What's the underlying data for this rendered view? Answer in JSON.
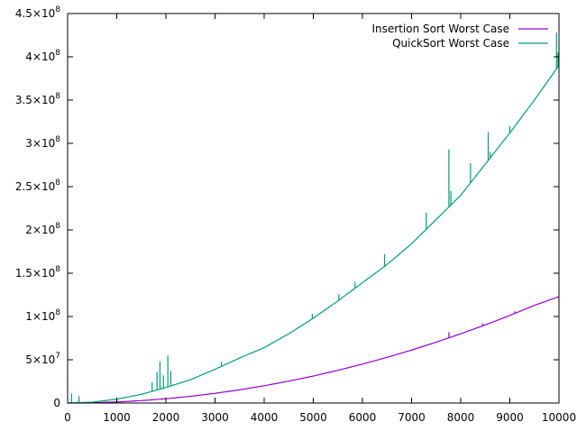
{
  "chart_data": {
    "type": "line",
    "title": "",
    "xlabel": "",
    "ylabel": "",
    "xlim": [
      0,
      10000
    ],
    "ylim": [
      0,
      450000000
    ],
    "grid": false,
    "legend_position": "top-right",
    "x_ticks": [
      {
        "value": 0,
        "label": "0"
      },
      {
        "value": 1000,
        "label": "1000"
      },
      {
        "value": 2000,
        "label": "2000"
      },
      {
        "value": 3000,
        "label": "3000"
      },
      {
        "value": 4000,
        "label": "4000"
      },
      {
        "value": 5000,
        "label": "5000"
      },
      {
        "value": 6000,
        "label": "6000"
      },
      {
        "value": 7000,
        "label": "7000"
      },
      {
        "value": 8000,
        "label": "8000"
      },
      {
        "value": 9000,
        "label": "9000"
      },
      {
        "value": 10000,
        "label": "10000"
      }
    ],
    "y_ticks": [
      {
        "value": 0,
        "mantissa": "0",
        "exp": ""
      },
      {
        "value": 50000000,
        "mantissa": "5×10",
        "exp": "7"
      },
      {
        "value": 100000000,
        "mantissa": "1×10",
        "exp": "8"
      },
      {
        "value": 150000000,
        "mantissa": "1.5×10",
        "exp": "8"
      },
      {
        "value": 200000000,
        "mantissa": "2×10",
        "exp": "8"
      },
      {
        "value": 250000000,
        "mantissa": "2.5×10",
        "exp": "8"
      },
      {
        "value": 300000000,
        "mantissa": "3×10",
        "exp": "8"
      },
      {
        "value": 350000000,
        "mantissa": "3.5×10",
        "exp": "8"
      },
      {
        "value": 400000000,
        "mantissa": "4×10",
        "exp": "8"
      },
      {
        "value": 450000000,
        "mantissa": "4.5×10",
        "exp": "8"
      }
    ],
    "series": [
      {
        "name": "Insertion Sort Worst Case",
        "color": "#9400d3",
        "x": [
          0,
          500,
          1000,
          1500,
          2000,
          2500,
          3000,
          3500,
          4000,
          4500,
          5000,
          5500,
          6000,
          6500,
          7000,
          7500,
          8000,
          8500,
          9000,
          9500,
          10000
        ],
        "y": [
          0,
          310000,
          1250000,
          2800000,
          5000000,
          7800000,
          11200000,
          15300000,
          20000000,
          25300000,
          31200000,
          37800000,
          45000000,
          52800000,
          61200000,
          70300000,
          80000000,
          90300000,
          101200000,
          112800000,
          123000000
        ],
        "spikes": [
          {
            "x": 7760,
            "y": 82000000
          },
          {
            "x": 8450,
            "y": 92000000
          },
          {
            "x": 9100,
            "y": 106000000
          }
        ]
      },
      {
        "name": "QuickSort Worst Case",
        "color": "#009e73",
        "x": [
          0,
          500,
          1000,
          1500,
          2000,
          2500,
          3000,
          3500,
          4000,
          4500,
          5000,
          5500,
          6000,
          6500,
          7000,
          7500,
          8000,
          8500,
          9000,
          9500,
          10000
        ],
        "y": [
          0,
          1000000,
          4500000,
          10000000,
          18000000,
          27000000,
          39000000,
          52000000,
          64000000,
          80000000,
          98000000,
          118000000,
          139000000,
          160000000,
          184000000,
          212000000,
          240000000,
          276000000,
          312000000,
          350000000,
          390000000
        ],
        "spikes": [
          {
            "x": 80,
            "y": 11000000
          },
          {
            "x": 230,
            "y": 8000000
          },
          {
            "x": 1720,
            "y": 24000000
          },
          {
            "x": 1820,
            "y": 36000000
          },
          {
            "x": 1880,
            "y": 48000000
          },
          {
            "x": 1950,
            "y": 32000000
          },
          {
            "x": 2040,
            "y": 55000000
          },
          {
            "x": 2100,
            "y": 37000000
          },
          {
            "x": 3130,
            "y": 48000000
          },
          {
            "x": 4980,
            "y": 103000000
          },
          {
            "x": 5520,
            "y": 126000000
          },
          {
            "x": 5850,
            "y": 140000000
          },
          {
            "x": 6450,
            "y": 172000000
          },
          {
            "x": 7300,
            "y": 220000000
          },
          {
            "x": 7760,
            "y": 293000000
          },
          {
            "x": 7800,
            "y": 245000000
          },
          {
            "x": 8200,
            "y": 277000000
          },
          {
            "x": 8560,
            "y": 313000000
          },
          {
            "x": 8600,
            "y": 290000000
          },
          {
            "x": 9000,
            "y": 320000000
          },
          {
            "x": 9950,
            "y": 428000000
          },
          {
            "x": 9980,
            "y": 405000000
          }
        ]
      }
    ]
  }
}
